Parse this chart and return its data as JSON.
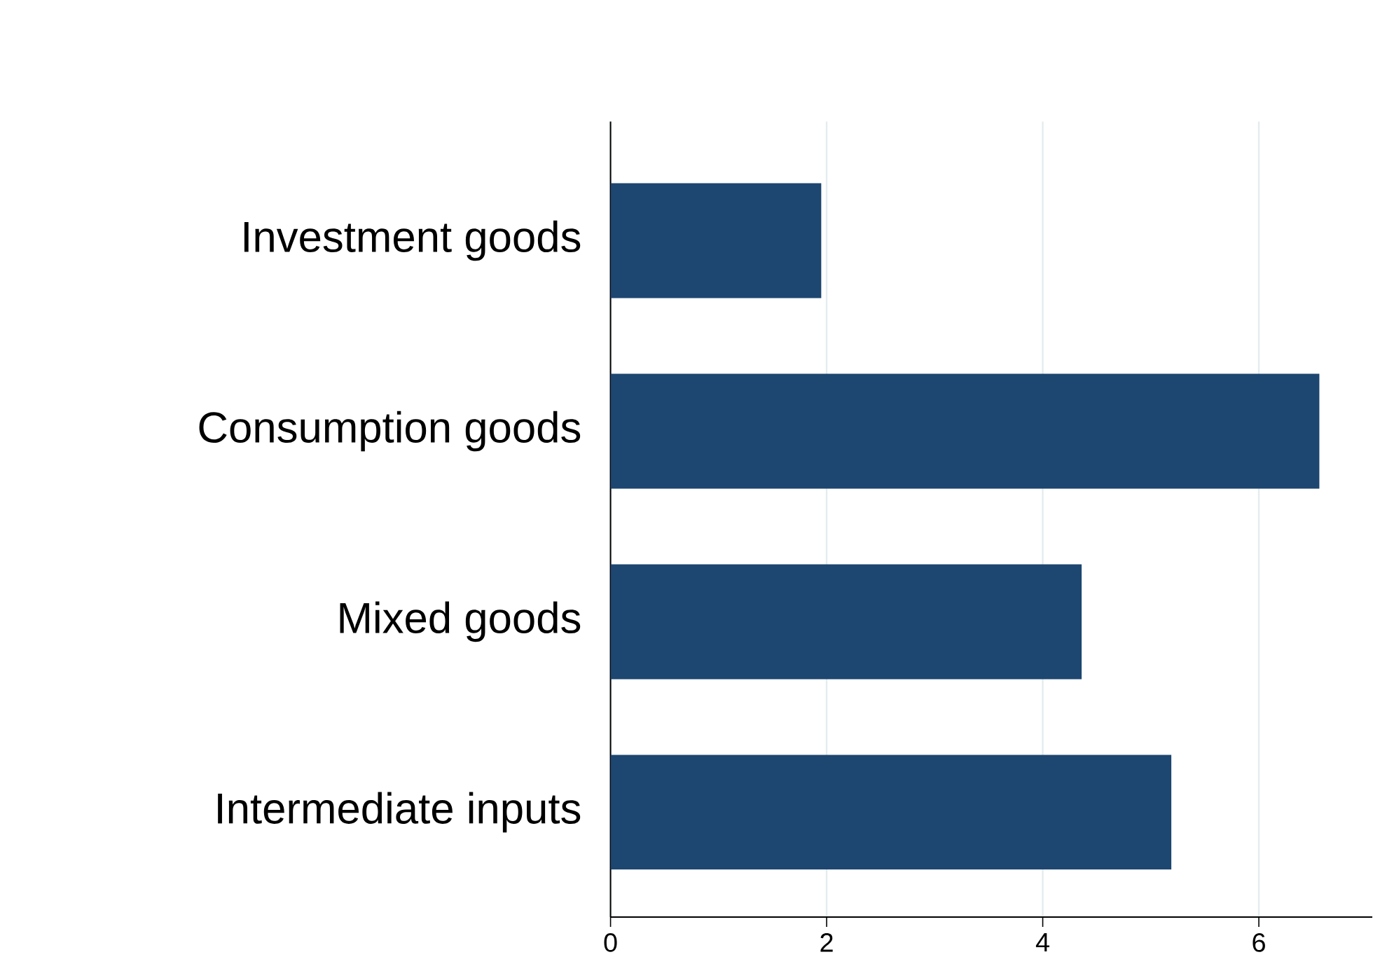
{
  "chart_data": {
    "type": "bar",
    "orientation": "horizontal",
    "categories": [
      "Investment goods",
      "Consumption goods",
      "Mixed goods",
      "Intermediate inputs"
    ],
    "values": [
      1.95,
      6.56,
      4.36,
      5.19
    ],
    "color": "#1d4670",
    "xlim": [
      0,
      7.05
    ],
    "xticks": [
      0,
      2,
      4,
      6
    ],
    "grid": "x"
  }
}
